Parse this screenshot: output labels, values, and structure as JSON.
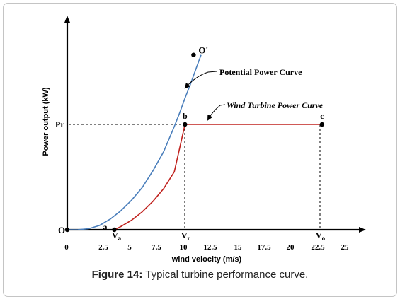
{
  "chart_data": {
    "type": "line",
    "xlabel": "wind velocity (m/s)",
    "ylabel": "Power output (kW)",
    "xlim": [
      0,
      28
    ],
    "x_ticks": [
      "0",
      "2.5",
      "5",
      "7.5",
      "10",
      "12.5",
      "15",
      "17.5",
      "20",
      "22.5",
      "25"
    ],
    "x_tick_values": [
      0,
      2.5,
      5,
      7.5,
      10,
      12.5,
      15,
      17.5,
      20,
      22.5,
      25
    ],
    "y_ticks": [
      {
        "label": "O",
        "value": 0
      },
      {
        "label": "Pr",
        "value": 1
      }
    ],
    "special_x_labels": [
      {
        "main": "V",
        "sub": "a",
        "value": 4.4
      },
      {
        "main": "V",
        "sub": "r",
        "value": 11
      },
      {
        "main": "V",
        "sub": "o",
        "value": 23.8
      }
    ],
    "series": [
      {
        "name": "Potential Power Curve",
        "color": "#4a7ebb",
        "x": [
          0,
          1,
          2,
          3,
          4,
          5,
          6,
          7,
          8,
          9,
          10,
          10.5,
          11,
          11.5,
          12,
          12.5
        ],
        "y": [
          0,
          0.001,
          0.01,
          0.04,
          0.1,
          0.18,
          0.28,
          0.4,
          0.56,
          0.74,
          0.98,
          1.11,
          1.25,
          1.38,
          1.52,
          1.66
        ]
      },
      {
        "name": "Wind Turbine Power Curve",
        "color": "#c0221e",
        "x": [
          4.4,
          5,
          6,
          7,
          8,
          9,
          10,
          11,
          12,
          13,
          14,
          15,
          16,
          17,
          18,
          19,
          20,
          21,
          22,
          23,
          23.8
        ],
        "y": [
          0,
          0.03,
          0.09,
          0.17,
          0.27,
          0.39,
          0.55,
          1,
          1,
          1,
          1,
          1,
          1,
          1,
          1,
          1,
          1,
          1,
          1,
          1,
          1
        ]
      }
    ],
    "points": [
      {
        "label": "a",
        "x": 4.4,
        "y": 0
      },
      {
        "label": "b",
        "x": 11,
        "y": 1
      },
      {
        "label": "c",
        "x": 23.8,
        "y": 1
      },
      {
        "label": "O'",
        "x": 11.8,
        "y": 1.66
      }
    ],
    "annotations": [
      "Potential Power Curve",
      "Wind Turbine Power Curve"
    ]
  },
  "caption": {
    "label": "Figure 14:",
    "text": "Typical turbine performance curve."
  }
}
